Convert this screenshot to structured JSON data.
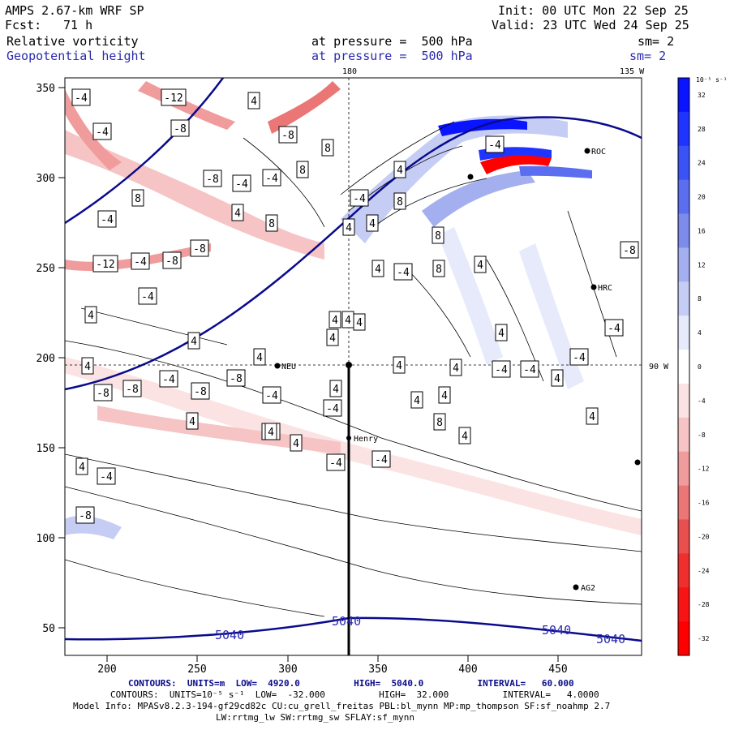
{
  "header": {
    "model": "AMPS 2.67-km WRF SP",
    "fcst_label": "Fcst:",
    "fcst_value": "71 h",
    "init": "Init: 00 UTC Mon 22 Sep 25",
    "valid": "Valid: 23 UTC Wed 24 Sep 25",
    "field1": "Relative vorticity",
    "field1_level": "at pressure =  500 hPa",
    "field1_sm": "sm= 2",
    "field2": "Geopotential height",
    "field2_level": "at pressure =  500 hPa",
    "field2_sm": "sm= 2"
  },
  "map": {
    "lon_label_top_left": "180",
    "lon_label_top_right": "135 W",
    "lon_label_right": "90 W",
    "stations": [
      "ROC",
      "HRC",
      "NEU",
      "Henry",
      "AG2"
    ],
    "height_contour_labels": [
      "5040",
      "5040",
      "5040",
      "5040"
    ],
    "vorticity_labels": [
      "-4",
      "-12",
      "4",
      "-4",
      "-8",
      "-8",
      "8",
      "-4",
      "8",
      "-8",
      "-4",
      "4",
      "8",
      "-4",
      "8",
      "-4",
      "-12",
      "-4",
      "-8",
      "-8",
      "4",
      "-4",
      "4",
      "8",
      "4",
      "4",
      "8",
      "-4",
      "4",
      "8",
      "4",
      "4",
      "4",
      "4",
      "4",
      "4",
      "4",
      "4",
      "-4",
      "4",
      "4",
      "-4",
      "-8",
      "-4",
      "4",
      "-4",
      "-8",
      "-4",
      "4",
      "-8",
      "-8",
      "-4",
      "-8",
      "-4",
      "4",
      "4",
      "4",
      "8",
      "4",
      "4",
      "-4",
      "4",
      "-4",
      "-8",
      "-4",
      "4",
      "4",
      "4",
      "-4",
      "-4"
    ]
  },
  "chart_data": {
    "type": "heatmap",
    "title": "Relative vorticity",
    "x_ticks": [
      200,
      250,
      300,
      350,
      400,
      450
    ],
    "y_ticks": [
      50,
      100,
      150,
      200,
      250,
      300,
      350
    ],
    "xlim": [
      175,
      495
    ],
    "ylim": [
      33,
      355
    ],
    "colorbar": {
      "units": "10⁻⁵ s⁻¹",
      "ticks": [
        "32",
        "28",
        "24",
        "20",
        "16",
        "12",
        "8",
        "4",
        "0",
        "-4",
        "-8",
        "-12",
        "-16",
        "-20",
        "-24",
        "-28",
        "-32"
      ],
      "colors": [
        "#0a14ff",
        "#2034ff",
        "#3b52f5",
        "#5b6ef0",
        "#7d8ceb",
        "#a3afef",
        "#c6cdf5",
        "#e6eafb",
        "#ffffff",
        "#fbe3e3",
        "#f6c4c4",
        "#f09c9c",
        "#ea7676",
        "#e85050",
        "#ef2e2e",
        "#f81414",
        "#ff0000"
      ]
    }
  },
  "footer": {
    "contours_height": "CONTOURS:  UNITS=m  LOW=  4920.0          HIGH=  5040.0          INTERVAL=   60.000",
    "contours_vort": "CONTOURS:  UNITS=10⁻⁵ s⁻¹  LOW=  -32.000          HIGH=  32.000          INTERVAL=   4.0000",
    "model_info": "Model Info: MPASv8.2.3-194-gf29cd82c CU:cu_grell_freitas PBL:bl_mynn MP:mp_thompson SF:sf_noahmp 2.7",
    "model_info2": "LW:rrtmg_lw SW:rrtmg_sw SFLAY:sf_mynn"
  }
}
